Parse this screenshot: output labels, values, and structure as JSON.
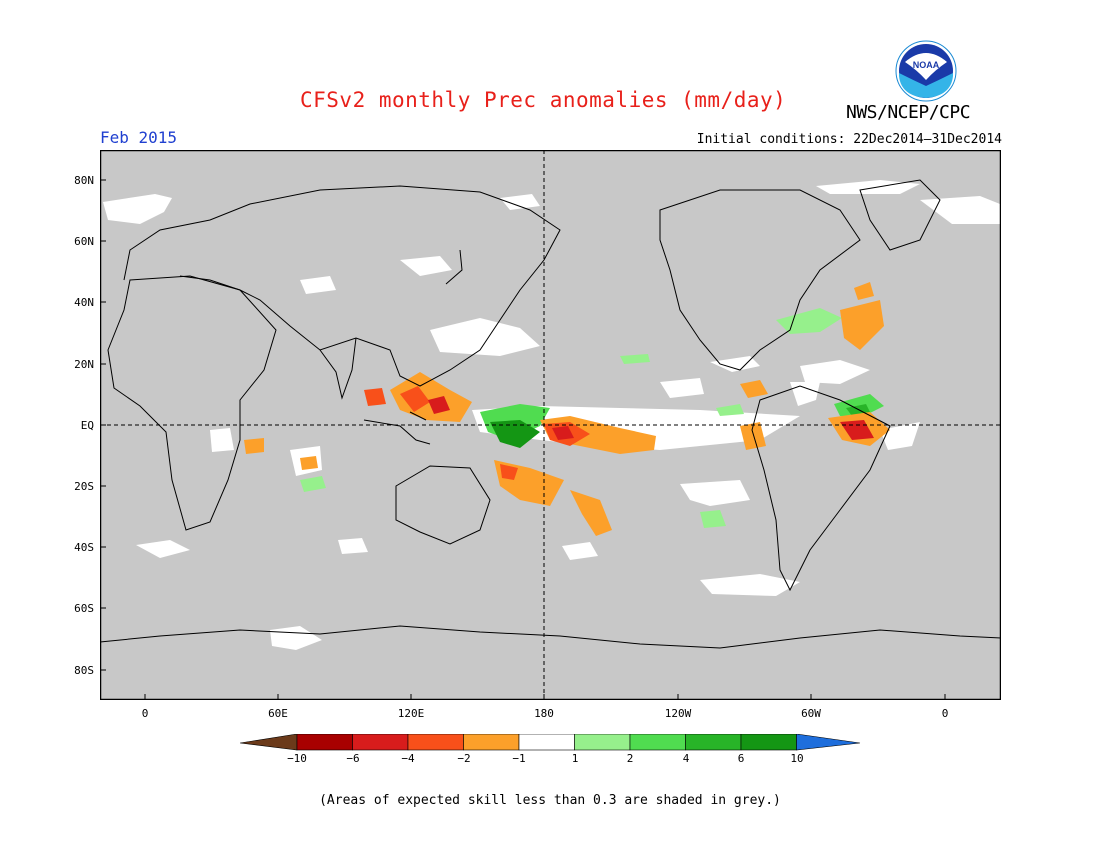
{
  "title": "CFSv2 monthly Prec anomalies (mm/day)",
  "organization": "NWS/NCEP/CPC",
  "logo_text": "NOAA",
  "valid_month": "Feb 2015",
  "initial_conditions": "Initial conditions: 22Dec2014–31Dec2014",
  "lat_labels": [
    "80N",
    "60N",
    "40N",
    "20N",
    "EQ",
    "20S",
    "40S",
    "60S",
    "80S"
  ],
  "lon_labels": [
    "0",
    "60E",
    "120E",
    "180",
    "120W",
    "60W",
    "0"
  ],
  "colorbar": {
    "labels": [
      "−10",
      "−6",
      "−4",
      "−2",
      "−1",
      "1",
      "2",
      "4",
      "6",
      "10"
    ],
    "colors": [
      "#6b3a1a",
      "#a80000",
      "#d81c1c",
      "#f8501a",
      "#fca02a",
      "#ffffff",
      "#96f08c",
      "#50dc50",
      "#28b428",
      "#149614",
      "#1e6edc"
    ]
  },
  "colors": {
    "land_grey": "#c8c8c8",
    "negative_strong": "#d81c1c",
    "negative": "#f8501a",
    "negative_weak": "#fca02a",
    "positive_weak": "#96f08c",
    "positive": "#50dc50",
    "positive_strong": "#149614"
  },
  "footnote": "(Areas of expected skill less than 0.3 are shaded in grey.)"
}
